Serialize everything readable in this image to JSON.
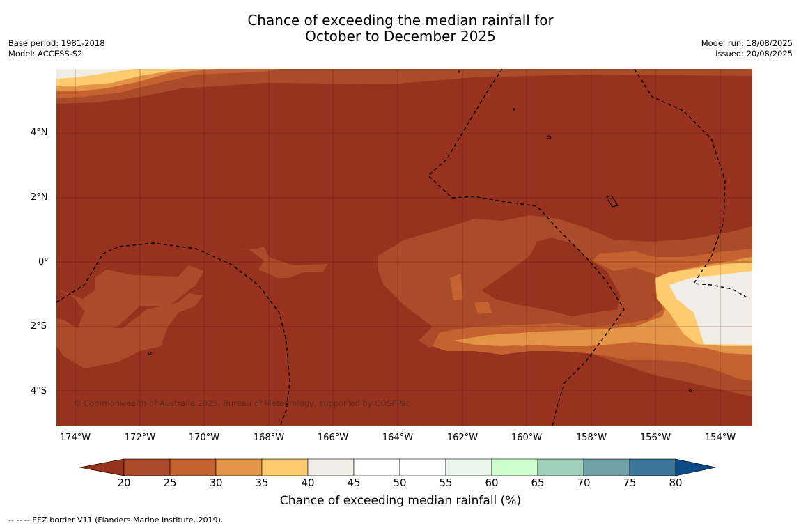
{
  "title": {
    "line1": "Chance of exceeding the median rainfall for",
    "line2": "October to December 2025"
  },
  "meta": {
    "base_period": "Base period: 1981-2018",
    "model": "Model: ACCESS-S2",
    "model_run": "Model run: 18/08/2025",
    "issued": "Issued: 20/08/2025"
  },
  "axes": {
    "lat_labels": [
      "4°N",
      "2°N",
      "0°",
      "2°S",
      "4°S"
    ],
    "lon_labels": [
      "174°W",
      "172°W",
      "170°W",
      "168°W",
      "166°W",
      "164°W",
      "162°W",
      "160°W",
      "158°W",
      "156°W",
      "154°W"
    ]
  },
  "copyright": "© Commonwealth of Australia 2025, Bureau of Meteorology, supported by COSPPac",
  "colorbar": {
    "title": "Chance of exceeding median rainfall (%)",
    "ticks": [
      "20",
      "25",
      "30",
      "35",
      "40",
      "45",
      "50",
      "55",
      "60",
      "65",
      "70",
      "75",
      "80"
    ],
    "colors": {
      "below20": "#97321f",
      "20-25": "#ab4b2a",
      "25-30": "#c66230",
      "30-35": "#e39547",
      "35-40": "#fecb6e",
      "40-45": "#f0ece6",
      "45-50": "#ffffff",
      "50-55": "#ffffff",
      "55-60": "#eaf6ea",
      "60-65": "#ccffcc",
      "65-70": "#9fd1b9",
      "70-75": "#6fa3a9",
      "75-80": "#3b7699",
      "above80": "#0d4b88"
    }
  },
  "footnote": "--  --  -- EEZ border V11 (Flanders Marine Institute, 2019)."
}
